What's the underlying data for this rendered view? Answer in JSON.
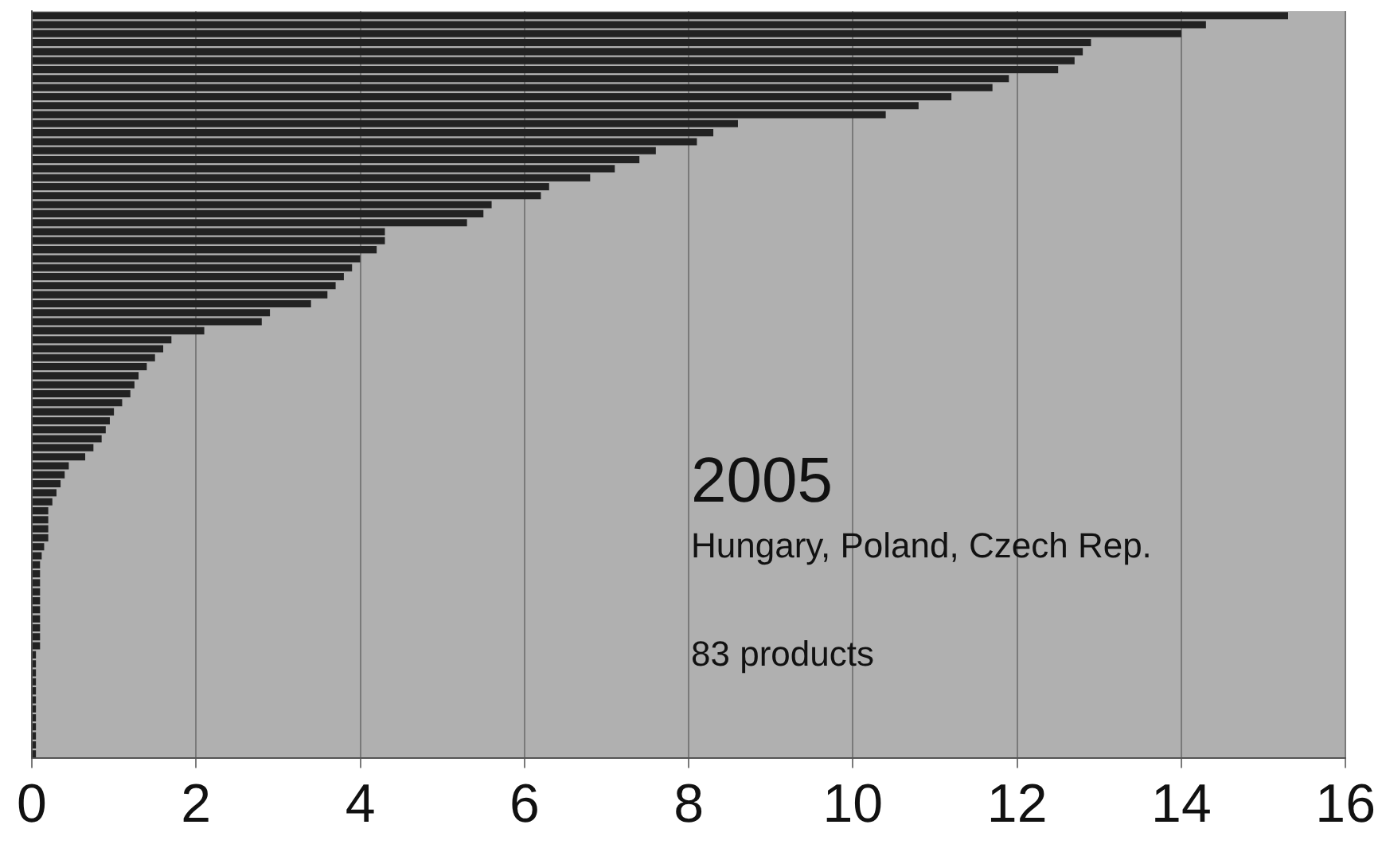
{
  "chart_data": {
    "type": "bar",
    "orientation": "horizontal",
    "categories": [
      null,
      null,
      null,
      null,
      null,
      null,
      null,
      null,
      null,
      null,
      null,
      null,
      null,
      null,
      null,
      null,
      null,
      null,
      null,
      null,
      null,
      null,
      null,
      null,
      null,
      null,
      null,
      null,
      null,
      null,
      null,
      null,
      null,
      null,
      null,
      null,
      null,
      null,
      null,
      null,
      null,
      null,
      null,
      null,
      null,
      null,
      null,
      null,
      null,
      null,
      null,
      null,
      null,
      null,
      null,
      null,
      null,
      null,
      null,
      null,
      null,
      null,
      null,
      null,
      null,
      null,
      null,
      null,
      null,
      null,
      null,
      null,
      null,
      null,
      null,
      null,
      null,
      null,
      null,
      null,
      null,
      null,
      null
    ],
    "values": [
      15.3,
      14.3,
      14.0,
      12.9,
      12.8,
      12.7,
      12.5,
      11.9,
      11.7,
      11.2,
      10.8,
      10.4,
      8.6,
      8.3,
      8.1,
      7.6,
      7.4,
      7.1,
      6.8,
      6.3,
      6.2,
      5.6,
      5.5,
      5.3,
      4.3,
      4.3,
      4.2,
      4.0,
      3.9,
      3.8,
      3.7,
      3.6,
      3.4,
      2.9,
      2.8,
      2.1,
      1.7,
      1.6,
      1.5,
      1.4,
      1.3,
      1.25,
      1.2,
      1.1,
      1.0,
      0.95,
      0.9,
      0.85,
      0.75,
      0.65,
      0.45,
      0.4,
      0.35,
      0.3,
      0.25,
      0.2,
      0.2,
      0.2,
      0.2,
      0.15,
      0.12,
      0.1,
      0.1,
      0.1,
      0.1,
      0.1,
      0.1,
      0.1,
      0.1,
      0.1,
      0.1,
      0.05,
      0.05,
      0.05,
      0.05,
      0.05,
      0.05,
      0.05,
      0.05,
      0.05,
      0.05,
      0.05,
      0.05
    ],
    "color": "#222222",
    "xlim": [
      0,
      16
    ],
    "xticks": [
      0,
      2,
      4,
      6,
      8,
      10,
      12,
      14,
      16
    ],
    "grid": "x",
    "tick_labels": "x",
    "annotations": [
      "2005",
      "Hungary, Poland, Czech Rep.",
      "83 products"
    ]
  }
}
